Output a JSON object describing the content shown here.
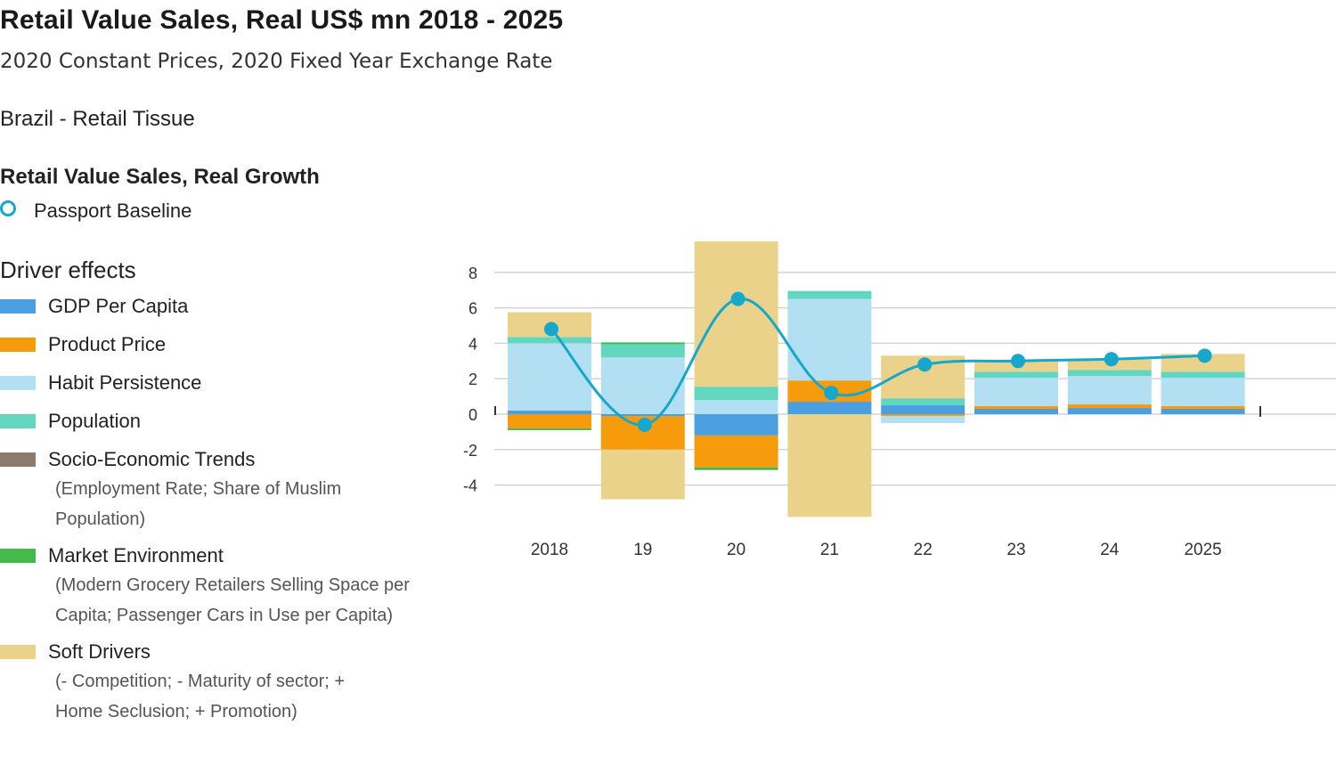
{
  "header": {
    "title": "Retail Value Sales, Real US$ mn 2018 - 2025",
    "subtitle": "2020 Constant Prices, 2020 Fixed Year Exchange Rate",
    "market": "Brazil - Retail Tissue"
  },
  "growth": {
    "title": "Retail Value Sales, Real Growth",
    "baseline_label": "Passport Baseline",
    "baseline_color": "#16a7cc"
  },
  "drivers": {
    "title": "Driver effects",
    "items": [
      {
        "label": "GDP Per Capita",
        "color": "#4a9fe0",
        "desc": ""
      },
      {
        "label": "Product Price",
        "color": "#f59b0c",
        "desc": ""
      },
      {
        "label": "Habit Persistence",
        "color": "#b3dff2",
        "desc": ""
      },
      {
        "label": "Population",
        "color": "#62d6bf",
        "desc": ""
      },
      {
        "label": "Socio-Economic Trends",
        "color": "#8c7b6d",
        "desc": "(Employment Rate; Share of Muslim Population)"
      },
      {
        "label": "Market Environment",
        "color": "#44b94c",
        "desc": "(Modern Grocery Retailers Selling Space per Capita; Passenger Cars in Use per Capita)"
      },
      {
        "label": "Soft Drivers",
        "color": "#ead28a",
        "desc": "(- Competition; - Maturity of sector; + Home Seclusion; + Promotion)"
      }
    ]
  },
  "chart_data": {
    "type": "bar",
    "stacked": true,
    "categories": [
      "2018",
      "19",
      "20",
      "21",
      "22",
      "23",
      "24",
      "2025"
    ],
    "y_ticks": [
      "8",
      "6",
      "4",
      "2",
      "0",
      "-2",
      "-4"
    ],
    "ylim": [
      -5.8,
      9.8
    ],
    "grid": true,
    "series": [
      {
        "name": "GDP Per Capita",
        "color": "#4a9fe0",
        "values": [
          0.2,
          -0.1,
          -1.2,
          0.7,
          0.5,
          0.3,
          0.35,
          0.3
        ]
      },
      {
        "name": "Product Price",
        "color": "#f59b0c",
        "values": [
          -0.8,
          -1.9,
          -1.8,
          1.2,
          -0.1,
          0.15,
          0.2,
          0.15
        ]
      },
      {
        "name": "Habit Persistence",
        "color": "#b3dff2",
        "values": [
          3.8,
          3.2,
          0.8,
          4.6,
          -0.4,
          1.6,
          1.6,
          1.6
        ]
      },
      {
        "name": "Population",
        "color": "#62d6bf",
        "values": [
          0.35,
          0.75,
          0.75,
          0.45,
          0.4,
          0.35,
          0.35,
          0.35
        ]
      },
      {
        "name": "Socio-Economic Trends",
        "color": "#8c7b6d",
        "values": [
          0,
          0,
          0,
          0,
          0,
          0,
          0,
          0
        ]
      },
      {
        "name": "Market Environment",
        "color": "#44b94c",
        "values": [
          -0.1,
          0.1,
          -0.15,
          0,
          0,
          0,
          0,
          0
        ]
      },
      {
        "name": "Soft Drivers",
        "color": "#ead28a",
        "values": [
          1.4,
          -2.8,
          8.2,
          -5.8,
          2.4,
          0.6,
          0.6,
          1.0
        ]
      }
    ],
    "line": {
      "name": "Passport Baseline",
      "color": "#16a7cc",
      "values": [
        4.8,
        -0.6,
        6.5,
        1.2,
        2.8,
        3.0,
        3.1,
        3.3
      ]
    }
  }
}
